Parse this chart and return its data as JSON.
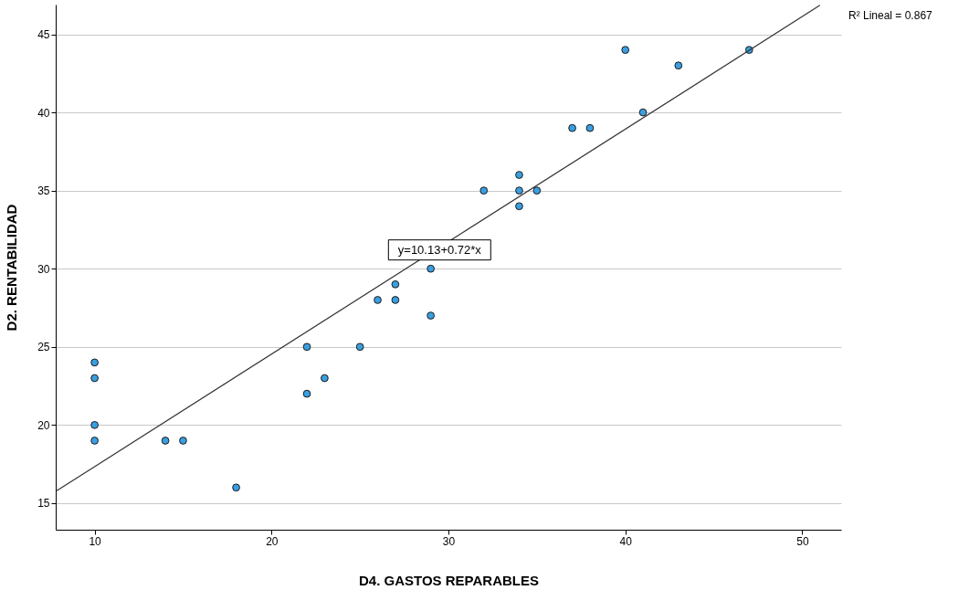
{
  "chart_data": {
    "type": "scatter",
    "xlabel": "D4. GASTOS REPARABLES",
    "ylabel": "D2. RENTABILIDAD",
    "xlim": [
      7.8,
      52.2
    ],
    "ylim": [
      13.3,
      46.9
    ],
    "xticks": [
      10,
      20,
      30,
      40,
      50
    ],
    "yticks": [
      15,
      20,
      25,
      30,
      35,
      40,
      45
    ],
    "grid": "y",
    "marker": "circle",
    "series": [
      {
        "color": "#3a9fe0",
        "x": [
          10,
          10,
          10,
          10,
          14,
          15,
          18,
          22,
          22,
          23,
          25,
          26,
          27,
          27,
          29,
          29,
          32,
          34,
          34,
          34,
          35,
          37,
          38,
          40,
          41,
          43,
          47
        ],
        "values": [
          24,
          23,
          20,
          19,
          19,
          19,
          16,
          25,
          22,
          23,
          25,
          28,
          29,
          28,
          30,
          27,
          35,
          36,
          35,
          34,
          35,
          39,
          39,
          44,
          40,
          43,
          44
        ]
      },
      {
        "type": "line",
        "marker": "none",
        "line_style": "solid",
        "color": "#333333",
        "x": [
          7.8,
          51
        ],
        "values": [
          15.75,
          46.85
        ]
      }
    ],
    "annotations": [
      {
        "text": "y=10.13+0.72*x",
        "x": 29.5,
        "y": 31.2
      },
      "R² Lineal = 0.867"
    ]
  }
}
